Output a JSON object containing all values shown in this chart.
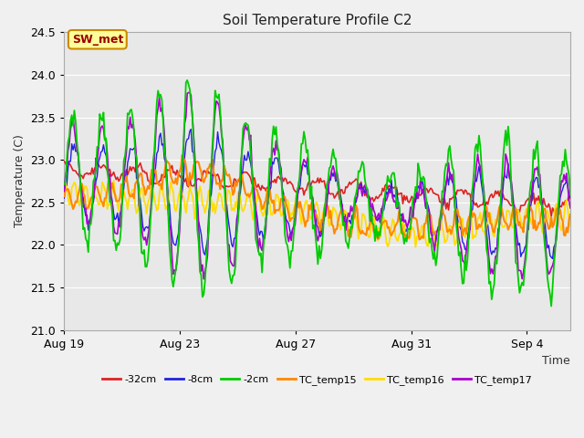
{
  "title": "Soil Temperature Profile C2",
  "xlabel": "Time",
  "ylabel": "Temperature (C)",
  "ylim": [
    21.0,
    24.5
  ],
  "yticks": [
    21.0,
    21.5,
    22.0,
    22.5,
    23.0,
    23.5,
    24.0,
    24.5
  ],
  "xtick_labels": [
    "Aug 19",
    "Aug 23",
    "Aug 27",
    "Aug 31",
    "Sep 4"
  ],
  "xtick_positions": [
    0,
    4,
    8,
    12,
    16
  ],
  "xlim": [
    0,
    17.5
  ],
  "annotation_text": "SW_met",
  "annotation_bg": "#ffff99",
  "annotation_border": "#cc8800",
  "annotation_text_color": "#990000",
  "line_colors": {
    "-32cm": "#dd2222",
    "-8cm": "#2222dd",
    "-2cm": "#00cc00",
    "TC_temp15": "#ff8800",
    "TC_temp16": "#ffdd00",
    "TC_temp17": "#aa00cc"
  },
  "fig_bg": "#f0f0f0",
  "plot_bg": "#e8e8e8",
  "grid_color": "#ffffff",
  "n_points": 400
}
